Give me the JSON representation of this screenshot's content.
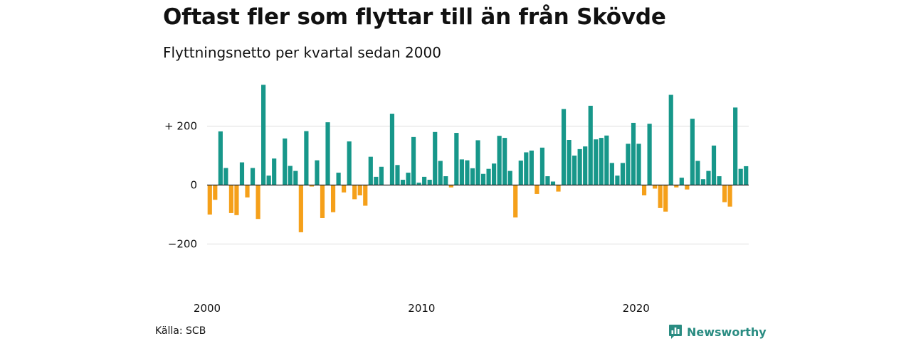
{
  "title": "Oftast fler som flyttar till än från Skövde",
  "subtitle": "Flyttningsnetto per kvartal sedan 2000",
  "source": "Källa: SCB",
  "brand": {
    "name": "Newsworthy",
    "icon": "newsworthy-logo-icon"
  },
  "colors": {
    "positive": "#17978a",
    "negative": "#f5a01a",
    "grid": "#dddddd",
    "zero": "#222222"
  },
  "chart_data": {
    "type": "bar",
    "xlabel": "",
    "ylabel": "",
    "ylim": [
      -320,
      340
    ],
    "yticks": [
      {
        "value": 200,
        "label": "+ 200"
      },
      {
        "value": 0,
        "label": "0"
      },
      {
        "value": -200,
        "label": "−200"
      }
    ],
    "xticks": [
      {
        "value": 2000,
        "label": "2000"
      },
      {
        "value": 2010,
        "label": "2010"
      },
      {
        "value": 2020,
        "label": "2020"
      }
    ],
    "x_start": "2000 Q1",
    "x_end": "2025 Q1",
    "values": [
      -100,
      -50,
      182,
      58,
      -95,
      -102,
      77,
      -42,
      58,
      -115,
      340,
      32,
      90,
      0,
      158,
      65,
      48,
      -160,
      183,
      -5,
      84,
      -112,
      213,
      -92,
      42,
      -25,
      148,
      -48,
      -35,
      -70,
      96,
      28,
      62,
      0,
      242,
      68,
      18,
      42,
      163,
      8,
      28,
      18,
      180,
      82,
      30,
      -8,
      177,
      87,
      84,
      57,
      152,
      38,
      55,
      73,
      167,
      160,
      48,
      -110,
      83,
      111,
      117,
      -30,
      127,
      30,
      12,
      -22,
      258,
      153,
      100,
      122,
      131,
      269,
      155,
      160,
      168,
      75,
      32,
      75,
      140,
      211,
      140,
      -35,
      208,
      -12,
      -78,
      -90,
      306,
      -8,
      25,
      -15,
      225,
      82,
      20,
      48,
      134,
      30,
      -58,
      -73,
      263,
      55,
      64
    ]
  }
}
